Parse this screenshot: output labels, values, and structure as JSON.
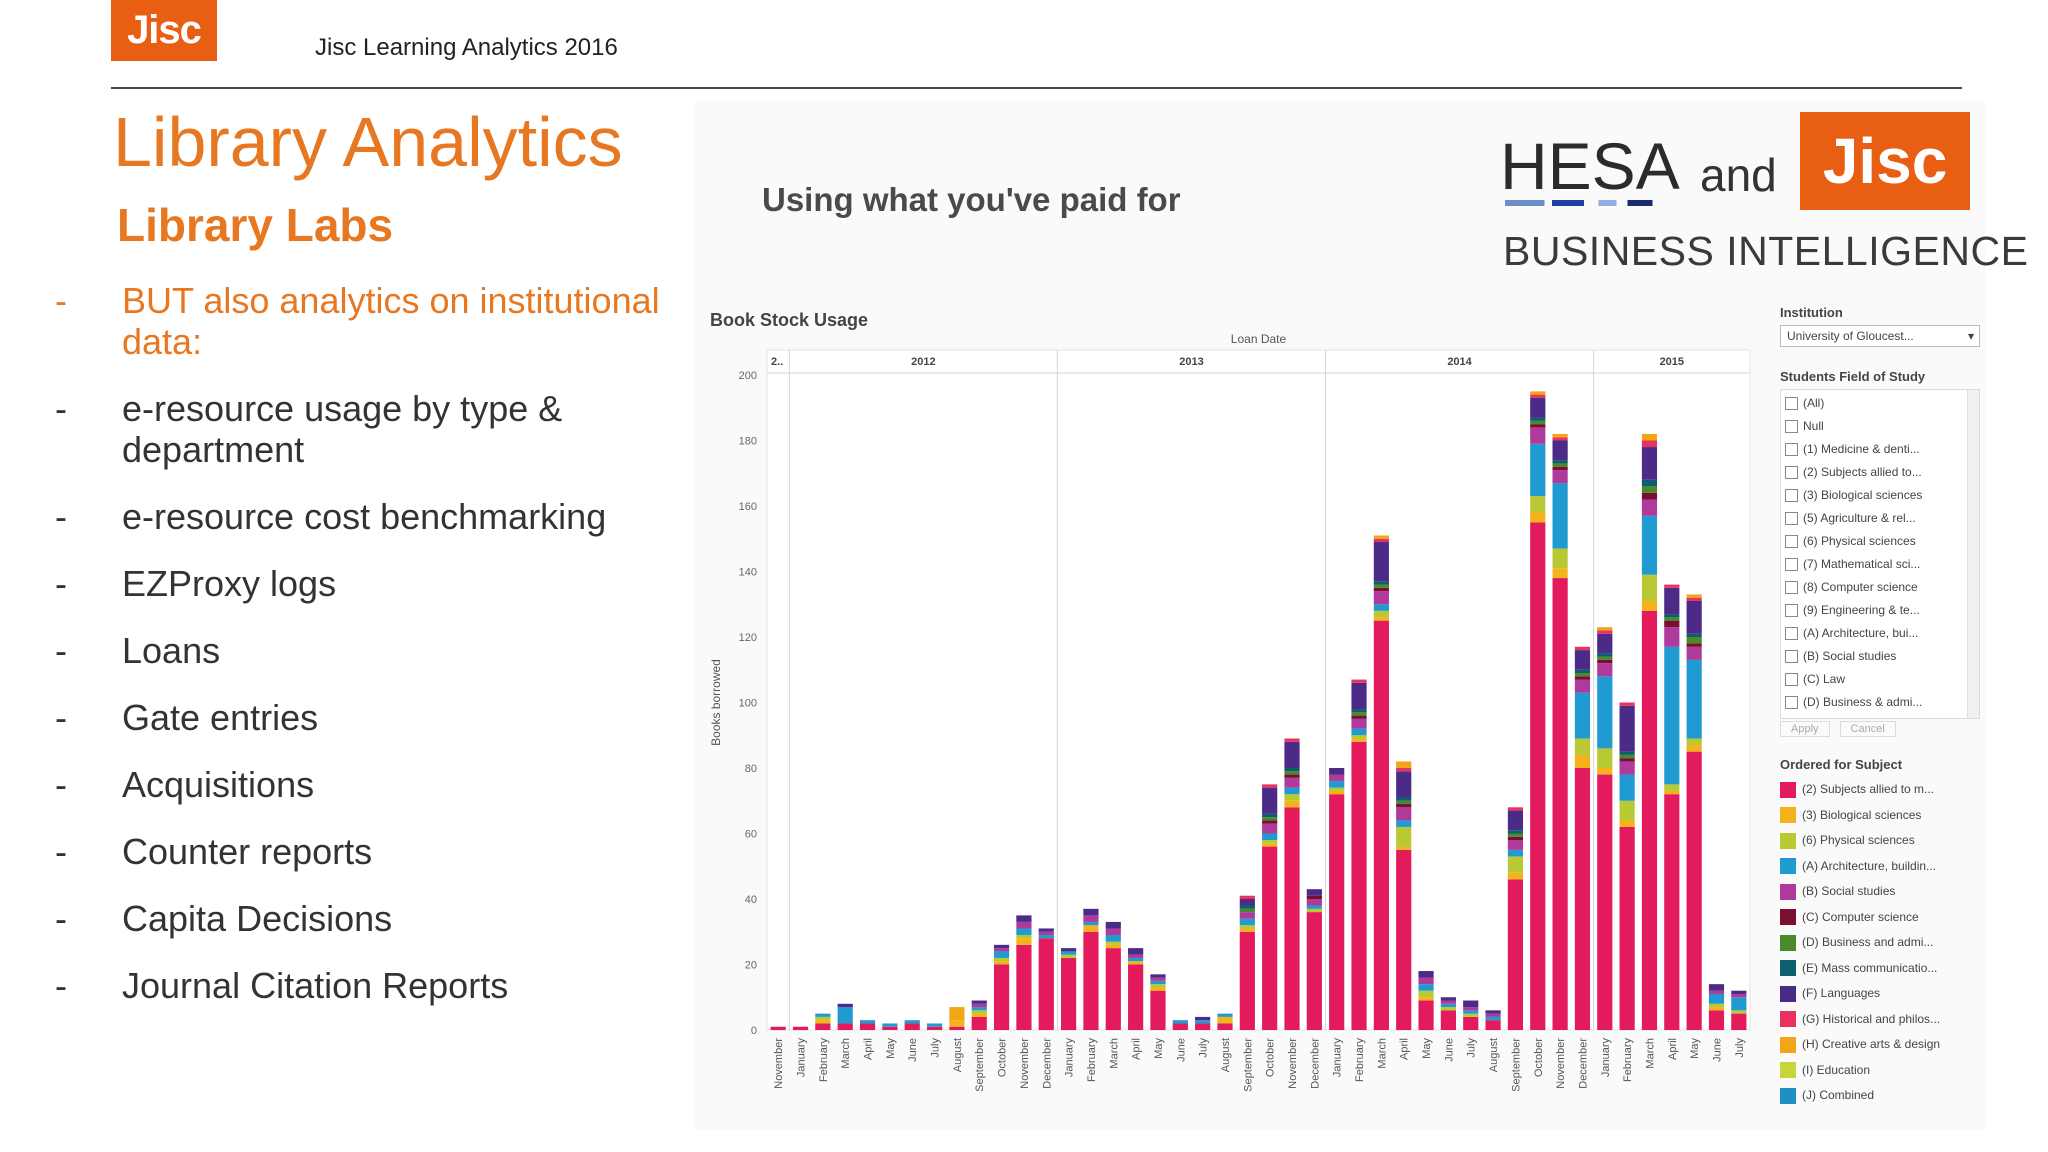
{
  "header": {
    "logo": "Jisc",
    "title": "Jisc Learning Analytics 2016"
  },
  "slide": {
    "title": "Library Analytics",
    "subtitle": "Library Labs",
    "bullets": [
      {
        "text": "BUT also analytics on institutional data:",
        "highlight": true
      },
      {
        "text": "e-resource usage by type & department",
        "highlight": false
      },
      {
        "text": "e-resource cost benchmarking",
        "highlight": false
      },
      {
        "text": "EZProxy logs",
        "highlight": false
      },
      {
        "text": "Loans",
        "highlight": false
      },
      {
        "text": "Gate entries",
        "highlight": false
      },
      {
        "text": "Acquisitions",
        "highlight": false
      },
      {
        "text": "Counter reports",
        "highlight": false
      },
      {
        "text": "Capita Decisions",
        "highlight": false
      },
      {
        "text": "Journal Citation Reports",
        "highlight": false
      }
    ],
    "bullet_dash": "-"
  },
  "dashboard": {
    "title": "Using what you've paid for",
    "brand_hesa": "HESA",
    "brand_and": "and",
    "brand_jisc": "Jisc",
    "brand_bi": "BUSINESS INTELLIGENCE",
    "chart_title": "Book Stock Usage",
    "filters": {
      "institution_label": "Institution",
      "institution_value": "University of Gloucest...",
      "fos_label": "Students Field of Study",
      "fos_items": [
        "(All)",
        "Null",
        "(1) Medicine & denti...",
        "(2) Subjects allied to...",
        "(3) Biological sciences",
        "(5) Agriculture & rel...",
        "(6) Physical sciences",
        "(7) Mathematical sci...",
        "(8) Computer science",
        "(9) Engineering & te...",
        "(A) Architecture, bui...",
        "(B) Social studies",
        "(C) Law",
        "(D) Business & admi..."
      ],
      "apply": "Apply",
      "cancel": "Cancel",
      "legend_label": "Ordered for Subject"
    },
    "colors": {
      "accent": "#e87722",
      "jisc": "#e85e13"
    }
  },
  "chart_data": {
    "type": "bar",
    "stacked": true,
    "title": "Book Stock Usage",
    "xlabel": "Loan Date",
    "ylabel": "Books borrowed",
    "ylim": [
      0,
      200
    ],
    "yticks": [
      0,
      20,
      40,
      60,
      80,
      100,
      120,
      140,
      160,
      180,
      200
    ],
    "year_groups": [
      {
        "label": "2..",
        "start": 0,
        "end": 1
      },
      {
        "label": "2012",
        "start": 1,
        "end": 13
      },
      {
        "label": "2013",
        "start": 13,
        "end": 25
      },
      {
        "label": "2014",
        "start": 25,
        "end": 37
      },
      {
        "label": "2015",
        "start": 37,
        "end": 44
      }
    ],
    "categories": [
      "November",
      "January",
      "February",
      "March",
      "April",
      "May",
      "June",
      "July",
      "August",
      "September",
      "October",
      "November",
      "December",
      "January",
      "February",
      "March",
      "April",
      "May",
      "June",
      "July",
      "August",
      "September",
      "October",
      "November",
      "December",
      "January",
      "February",
      "March",
      "April",
      "May",
      "June",
      "July",
      "August",
      "September",
      "October",
      "November",
      "December",
      "January",
      "February",
      "March",
      "April",
      "May",
      "June",
      "July"
    ],
    "series": [
      {
        "name": "(2) Subjects allied to m...",
        "color": "#e31a5c",
        "values": [
          1,
          1,
          2,
          2,
          2,
          1,
          2,
          1,
          1,
          4,
          20,
          26,
          28,
          22,
          30,
          25,
          20,
          12,
          2,
          2,
          2,
          30,
          56,
          68,
          36,
          72,
          88,
          125,
          55,
          9,
          6,
          4,
          3,
          46,
          155,
          138,
          80,
          78,
          62,
          128,
          72,
          85,
          6,
          5
        ]
      },
      {
        "name": "(3) Biological sciences",
        "color": "#f5b21a",
        "values": [
          0,
          0,
          1,
          0,
          0,
          0,
          0,
          0,
          2,
          1,
          1,
          2,
          0,
          0,
          2,
          1,
          1,
          1,
          0,
          0,
          2,
          1,
          1,
          2,
          0,
          1,
          1,
          1,
          1,
          1,
          0,
          0,
          0,
          2,
          3,
          3,
          4,
          2,
          2,
          3,
          1,
          2,
          1,
          0
        ]
      },
      {
        "name": "(6) Physical sciences",
        "color": "#b8c934",
        "values": [
          0,
          0,
          1,
          0,
          0,
          0,
          0,
          0,
          0,
          1,
          1,
          1,
          0,
          1,
          0,
          1,
          0,
          1,
          0,
          0,
          0,
          1,
          1,
          2,
          1,
          1,
          1,
          2,
          6,
          2,
          1,
          1,
          0,
          5,
          5,
          6,
          5,
          6,
          6,
          8,
          2,
          2,
          1,
          1
        ]
      },
      {
        "name": "(A) Architecture, buildin...",
        "color": "#1f9bd2",
        "values": [
          0,
          0,
          1,
          5,
          1,
          1,
          1,
          1,
          0,
          1,
          2,
          2,
          1,
          1,
          1,
          2,
          1,
          1,
          1,
          1,
          1,
          2,
          2,
          2,
          1,
          2,
          2,
          2,
          2,
          2,
          1,
          1,
          1,
          2,
          16,
          20,
          14,
          22,
          8,
          18,
          42,
          24,
          3,
          4
        ]
      },
      {
        "name": "(B) Social studies",
        "color": "#b03a9b",
        "values": [
          0,
          0,
          0,
          0,
          0,
          0,
          0,
          0,
          0,
          1,
          1,
          2,
          1,
          0,
          2,
          2,
          1,
          1,
          0,
          0,
          0,
          2,
          3,
          3,
          2,
          2,
          3,
          4,
          4,
          2,
          1,
          1,
          1,
          3,
          5,
          4,
          4,
          4,
          4,
          5,
          6,
          4,
          1,
          1
        ]
      },
      {
        "name": "(C) Computer science",
        "color": "#7a1030",
        "values": [
          0,
          0,
          0,
          0,
          0,
          0,
          0,
          0,
          0,
          0,
          0,
          0,
          0,
          0,
          0,
          0,
          0,
          0,
          0,
          0,
          0,
          0,
          1,
          1,
          1,
          0,
          1,
          1,
          1,
          0,
          0,
          0,
          0,
          1,
          1,
          1,
          1,
          1,
          1,
          2,
          2,
          1,
          0,
          0
        ]
      },
      {
        "name": "(D) Business and admi...",
        "color": "#4a8a2a",
        "values": [
          0,
          0,
          0,
          0,
          0,
          0,
          0,
          0,
          0,
          0,
          0,
          0,
          0,
          0,
          0,
          0,
          0,
          0,
          0,
          0,
          0,
          1,
          1,
          1,
          0,
          0,
          1,
          1,
          1,
          0,
          0,
          0,
          0,
          1,
          1,
          1,
          1,
          1,
          1,
          2,
          1,
          2,
          0,
          0
        ]
      },
      {
        "name": "(E) Mass communicatio...",
        "color": "#0d5f6e",
        "values": [
          0,
          0,
          0,
          0,
          0,
          0,
          0,
          0,
          0,
          0,
          0,
          0,
          0,
          0,
          0,
          0,
          0,
          0,
          0,
          0,
          0,
          1,
          1,
          1,
          0,
          0,
          1,
          1,
          1,
          0,
          0,
          0,
          0,
          1,
          1,
          1,
          1,
          1,
          1,
          2,
          1,
          1,
          0,
          0
        ]
      },
      {
        "name": "(F) Languages",
        "color": "#4b2a88",
        "values": [
          0,
          0,
          0,
          1,
          0,
          0,
          0,
          0,
          0,
          1,
          1,
          2,
          1,
          1,
          2,
          2,
          2,
          1,
          0,
          1,
          0,
          2,
          8,
          8,
          2,
          2,
          8,
          12,
          8,
          2,
          1,
          2,
          1,
          6,
          6,
          6,
          6,
          6,
          14,
          10,
          8,
          10,
          2,
          1
        ]
      },
      {
        "name": "(G) Historical and philos...",
        "color": "#e8335f",
        "values": [
          0,
          0,
          0,
          0,
          0,
          0,
          0,
          0,
          0,
          0,
          0,
          0,
          0,
          0,
          0,
          0,
          0,
          0,
          0,
          0,
          0,
          1,
          1,
          1,
          0,
          0,
          1,
          1,
          1,
          0,
          0,
          0,
          0,
          1,
          1,
          1,
          1,
          1,
          1,
          2,
          1,
          1,
          0,
          0
        ]
      },
      {
        "name": "(H) Creative arts & design",
        "color": "#f2a516",
        "values": [
          0,
          0,
          0,
          0,
          0,
          0,
          0,
          0,
          4,
          0,
          0,
          0,
          0,
          0,
          0,
          0,
          0,
          0,
          0,
          0,
          0,
          0,
          0,
          0,
          0,
          0,
          0,
          1,
          2,
          0,
          0,
          0,
          0,
          0,
          1,
          1,
          0,
          1,
          0,
          2,
          0,
          1,
          0,
          0
        ]
      },
      {
        "name": "(I) Education",
        "color": "#c9d43a",
        "values": [
          0,
          0,
          0,
          0,
          0,
          0,
          0,
          0,
          0,
          0,
          0,
          0,
          0,
          0,
          0,
          0,
          0,
          0,
          0,
          0,
          0,
          0,
          0,
          0,
          0,
          0,
          0,
          0,
          0,
          0,
          0,
          0,
          0,
          0,
          0,
          0,
          0,
          0,
          0,
          0,
          0,
          0,
          0,
          0
        ]
      },
      {
        "name": "(J) Combined",
        "color": "#1e8fc4",
        "values": [
          0,
          0,
          0,
          0,
          0,
          0,
          0,
          0,
          0,
          0,
          0,
          0,
          0,
          0,
          0,
          0,
          0,
          0,
          0,
          0,
          0,
          0,
          0,
          0,
          0,
          0,
          0,
          0,
          0,
          0,
          0,
          0,
          0,
          0,
          0,
          0,
          0,
          0,
          0,
          0,
          0,
          0,
          0,
          0
        ]
      }
    ]
  }
}
